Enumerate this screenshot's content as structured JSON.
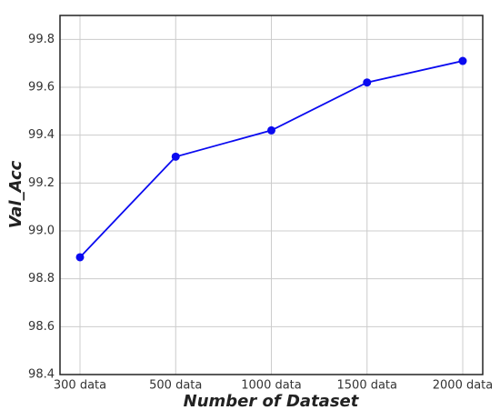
{
  "chart_data": {
    "type": "line",
    "x_label": "Number of Dataset",
    "y_label": "Val_Acc",
    "categories": [
      "300 data",
      "500 data",
      "1000 data",
      "1500 data",
      "2000 data"
    ],
    "series": [
      {
        "name": "Val_Acc",
        "color": "#0a0af0",
        "values": [
          98.89,
          99.31,
          99.42,
          99.62,
          99.71
        ]
      }
    ],
    "ylim": [
      98.4,
      99.9
    ],
    "yticks": [
      98.4,
      98.6,
      98.8,
      {
        "value": 99,
        "label": "99.0"
      },
      99.2,
      99.4,
      99.6,
      99.8
    ],
    "grid": true
  }
}
